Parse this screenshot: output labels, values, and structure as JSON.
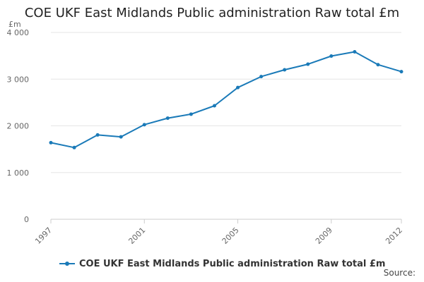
{
  "chart_data": {
    "type": "line",
    "title": "COE UKF East Midlands Public administration Raw total £m",
    "unit_label": "£m",
    "xlabel": "",
    "ylabel": "",
    "ylim": [
      0,
      4000
    ],
    "xlim": [
      1997,
      2012
    ],
    "y_ticks": [
      {
        "value": 0,
        "label": "0"
      },
      {
        "value": 1000,
        "label": "1 000"
      },
      {
        "value": 2000,
        "label": "2 000"
      },
      {
        "value": 3000,
        "label": "3 000"
      },
      {
        "value": 4000,
        "label": "4 000"
      }
    ],
    "x_ticks": [
      {
        "value": 1997,
        "label": "1997"
      },
      {
        "value": 2001,
        "label": "2001"
      },
      {
        "value": 2005,
        "label": "2005"
      },
      {
        "value": 2009,
        "label": "2009"
      },
      {
        "value": 2012,
        "label": "2012"
      }
    ],
    "grid": true,
    "legend_position": "bottom-left",
    "color": "#1a7ab8",
    "series": [
      {
        "name": "COE UKF East Midlands Public administration Raw total £m",
        "x": [
          1997,
          1998,
          1999,
          2000,
          2001,
          2002,
          2003,
          2004,
          2005,
          2006,
          2007,
          2008,
          2009,
          2010,
          2011,
          2012
        ],
        "values": [
          1640,
          1535,
          1805,
          1765,
          2025,
          2165,
          2250,
          2430,
          2820,
          3055,
          3200,
          3320,
          3495,
          3585,
          3310,
          3160
        ]
      }
    ]
  },
  "legend": {
    "label": "COE UKF East Midlands Public administration Raw total £m"
  },
  "source_label": "Source:"
}
